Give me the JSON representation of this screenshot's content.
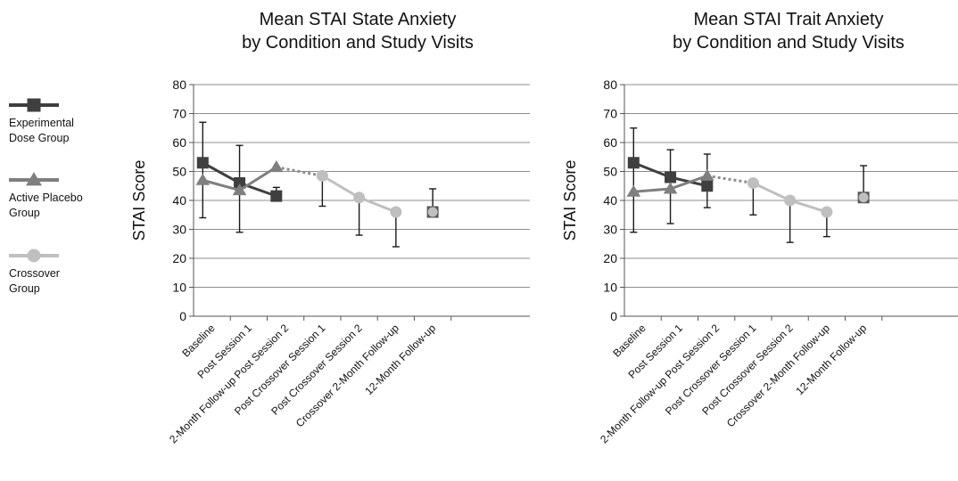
{
  "legend": {
    "position": "left",
    "items": [
      {
        "lines": [
          "Experimental",
          "Dose Group"
        ],
        "marker": "square",
        "color": "#3f3f3f"
      },
      {
        "lines": [
          "Active Placebo",
          "Group"
        ],
        "marker": "triangle",
        "color": "#7f7f7f"
      },
      {
        "lines": [
          "Crossover",
          "Group"
        ],
        "marker": "circle",
        "color": "#bfbfbf"
      }
    ]
  },
  "chart_data": [
    {
      "type": "line",
      "title_lines": [
        "Mean STAI State Anxiety",
        "by Condition and Study Visits"
      ],
      "xlabel": "",
      "ylabel": "STAI Score",
      "ylim": [
        0,
        80
      ],
      "yticks": [
        0,
        10,
        20,
        30,
        40,
        50,
        60,
        70,
        80
      ],
      "grid": true,
      "categories": [
        "Baseline",
        "Post Session 1",
        "2-Month Follow-up Post Session 2",
        "Post Crossover Session 1",
        "Post Crossover Session 2",
        "Crossover 2-Month Follow-up",
        "12-Month Follow-up"
      ],
      "series": [
        {
          "name": "Experimental Dose Group",
          "marker": "square",
          "color": "#3f3f3f",
          "points": [
            {
              "x": 0.25,
              "y": 53
            },
            {
              "x": 1.25,
              "y": 46
            },
            {
              "x": 2.25,
              "y": 41.5
            }
          ]
        },
        {
          "name": "Active Placebo Group",
          "marker": "triangle",
          "color": "#7f7f7f",
          "points": [
            {
              "x": 0.25,
              "y": 47
            },
            {
              "x": 1.25,
              "y": 43.5
            },
            {
              "x": 2.25,
              "y": 51.5
            }
          ]
        },
        {
          "name": "Crossover Group",
          "marker": "circle",
          "color": "#bfbfbf",
          "points": [
            {
              "x": 3.5,
              "y": 48.5
            },
            {
              "x": 4.5,
              "y": 41
            },
            {
              "x": 5.5,
              "y": 36
            },
            {
              "x": 6.5,
              "y": 36
            }
          ]
        }
      ],
      "connectors": [
        {
          "from": [
            2.25,
            51.5
          ],
          "to": [
            3.5,
            48.5
          ],
          "style": "dotted"
        }
      ],
      "error_bars": [
        {
          "x": 0.25,
          "low": 34,
          "high": 67
        },
        {
          "x": 1.25,
          "low": 29,
          "high": 59
        },
        {
          "x": 2.25,
          "low": 41.5,
          "high": 44.5
        },
        {
          "x": 3.5,
          "low": 38,
          "high": 48.5
        },
        {
          "x": 4.5,
          "low": 28,
          "high": 41
        },
        {
          "x": 5.5,
          "low": 24,
          "high": 36
        },
        {
          "x": 6.5,
          "low": 36,
          "high": 44
        }
      ]
    },
    {
      "type": "line",
      "title_lines": [
        "Mean STAI Trait Anxiety",
        "by Condition and Study Visits"
      ],
      "xlabel": "",
      "ylabel": "STAI Score",
      "ylim": [
        0,
        80
      ],
      "yticks": [
        0,
        10,
        20,
        30,
        40,
        50,
        60,
        70,
        80
      ],
      "grid": true,
      "categories": [
        "Baseline",
        "Post Session 1",
        "2-Month Follow-up Post Session 2",
        "Post Crossover Session 1",
        "Post Crossover Session 2",
        "Crossover 2-Month Follow-up",
        "12-Month Follow-up"
      ],
      "series": [
        {
          "name": "Experimental Dose Group",
          "marker": "square",
          "color": "#3f3f3f",
          "points": [
            {
              "x": 0.25,
              "y": 53
            },
            {
              "x": 1.25,
              "y": 48
            },
            {
              "x": 2.25,
              "y": 45
            }
          ]
        },
        {
          "name": "Active Placebo Group",
          "marker": "triangle",
          "color": "#7f7f7f",
          "points": [
            {
              "x": 0.25,
              "y": 43
            },
            {
              "x": 1.25,
              "y": 44
            },
            {
              "x": 2.25,
              "y": 48.5
            }
          ]
        },
        {
          "name": "Crossover Group",
          "marker": "circle",
          "color": "#bfbfbf",
          "points": [
            {
              "x": 3.5,
              "y": 46
            },
            {
              "x": 4.5,
              "y": 40
            },
            {
              "x": 5.5,
              "y": 36
            },
            {
              "x": 6.5,
              "y": 41
            }
          ]
        }
      ],
      "connectors": [
        {
          "from": [
            2.25,
            48.5
          ],
          "to": [
            3.5,
            46
          ],
          "style": "dotted"
        }
      ],
      "error_bars": [
        {
          "x": 0.25,
          "low": 29,
          "high": 65
        },
        {
          "x": 1.25,
          "low": 32,
          "high": 57.5
        },
        {
          "x": 2.25,
          "low": 37.5,
          "high": 56
        },
        {
          "x": 3.5,
          "low": 35,
          "high": 46
        },
        {
          "x": 4.5,
          "low": 25.5,
          "high": 40
        },
        {
          "x": 5.5,
          "low": 27.5,
          "high": 36
        },
        {
          "x": 6.5,
          "low": 41,
          "high": 52
        }
      ]
    }
  ]
}
